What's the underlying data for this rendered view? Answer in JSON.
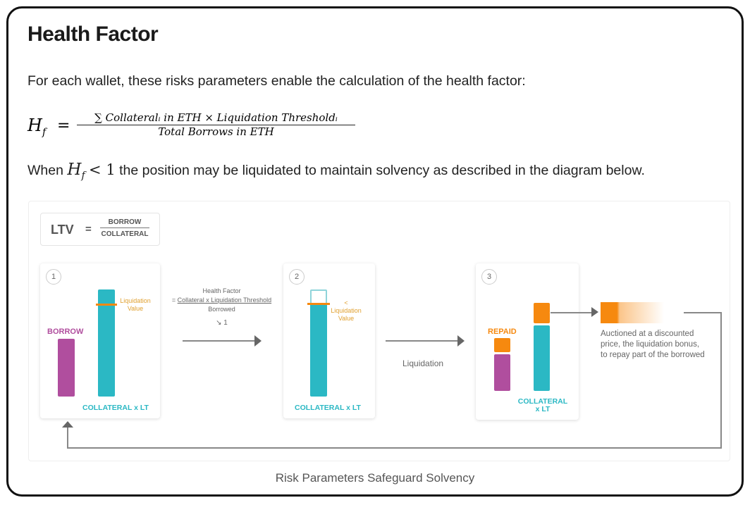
{
  "title": "Health Factor",
  "intro": "For each wallet, these risks parameters enable the calculation of the health factor:",
  "formula": {
    "lhs": "H",
    "lhs_sub": "f",
    "eq": "=",
    "numerator": "∑ Collateralᵢ in ETH × Liquidation Thresholdᵢ",
    "denominator": "Total Borrows in ETH"
  },
  "when": {
    "pre": "When",
    "h": "H",
    "sub": "f",
    "cond": "< 1",
    "post": "the position may be liquidated to maintain solvency as described in the diagram below."
  },
  "diagram": {
    "ltv": {
      "label": "LTV",
      "eq": "=",
      "num": "BORROW",
      "den": "COLLATERAL"
    },
    "step1": {
      "num": "1",
      "borrow": "BORROW",
      "liq_line1": "Liquidation",
      "liq_line2": "Value",
      "collateral": "COLLATERAL x LT"
    },
    "hf": {
      "title": "Health Factor",
      "eq": "=",
      "formula": "Collateral x Liquidation Threshold",
      "den": "Borrowed",
      "trend": "↘ 1"
    },
    "step2": {
      "num": "2",
      "lt": "<",
      "liq_line1": "Liquidation",
      "liq_line2": "Value",
      "collateral": "COLLATERAL x LT"
    },
    "liquidation": "Liquidation",
    "step3": {
      "num": "3",
      "repaid": "REPAID",
      "collateral1": "COLLATERAL",
      "collateral2": "x LT"
    },
    "auction": [
      "Auctioned at a discounted",
      "price, the liquidation bonus,",
      "to repay part of the borrowed"
    ]
  },
  "caption": "Risk Parameters Safeguard Solvency",
  "colors": {
    "teal": "#2bb8c4",
    "purple": "#b04e9e",
    "orange": "#f6890f"
  }
}
